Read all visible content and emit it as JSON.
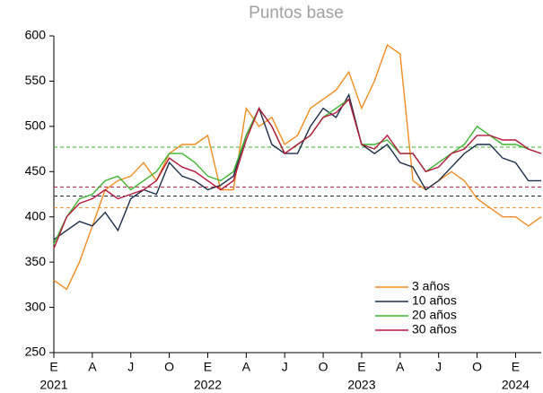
{
  "chart_data": {
    "type": "line",
    "title": "Puntos base",
    "x": [
      "2021-01",
      "2021-02",
      "2021-03",
      "2021-04",
      "2021-05",
      "2021-06",
      "2021-07",
      "2021-08",
      "2021-09",
      "2021-10",
      "2021-11",
      "2021-12",
      "2022-01",
      "2022-02",
      "2022-03",
      "2022-04",
      "2022-05",
      "2022-06",
      "2022-07",
      "2022-08",
      "2022-09",
      "2022-10",
      "2022-11",
      "2022-12",
      "2023-01",
      "2023-02",
      "2023-03",
      "2023-04",
      "2023-05",
      "2023-06",
      "2023-07",
      "2023-08",
      "2023-09",
      "2023-10",
      "2023-11",
      "2023-12",
      "2024-01",
      "2024-02",
      "2024-03"
    ],
    "series": [
      {
        "name": "3 años",
        "color": "#f28c1e",
        "average": 410,
        "values": [
          330,
          320,
          350,
          390,
          430,
          440,
          445,
          460,
          440,
          470,
          480,
          480,
          490,
          430,
          430,
          520,
          500,
          510,
          480,
          490,
          520,
          530,
          540,
          560,
          520,
          550,
          590,
          580,
          440,
          430,
          440,
          450,
          440,
          420,
          410,
          400,
          400,
          390,
          400
        ]
      },
      {
        "name": "10 años",
        "color": "#1c2e4a",
        "average": 423,
        "values": [
          375,
          385,
          395,
          390,
          405,
          385,
          420,
          430,
          425,
          460,
          445,
          440,
          430,
          435,
          445,
          490,
          520,
          480,
          470,
          470,
          500,
          520,
          510,
          535,
          480,
          470,
          480,
          460,
          455,
          430,
          440,
          455,
          470,
          480,
          480,
          465,
          460,
          440,
          440
        ]
      },
      {
        "name": "20 años",
        "color": "#3cb52e",
        "average": 477,
        "values": [
          370,
          400,
          420,
          425,
          440,
          445,
          430,
          440,
          450,
          470,
          470,
          460,
          445,
          440,
          450,
          490,
          520,
          500,
          470,
          480,
          490,
          510,
          520,
          530,
          480,
          480,
          485,
          470,
          470,
          450,
          460,
          470,
          480,
          500,
          490,
          480,
          480,
          475,
          470
        ]
      },
      {
        "name": "30 años",
        "color": "#b5173c",
        "average": 433,
        "values": [
          365,
          400,
          415,
          420,
          430,
          420,
          425,
          430,
          440,
          465,
          455,
          450,
          440,
          430,
          440,
          485,
          520,
          500,
          470,
          480,
          490,
          510,
          515,
          530,
          480,
          475,
          490,
          470,
          470,
          450,
          455,
          470,
          475,
          490,
          490,
          485,
          485,
          475,
          470
        ]
      }
    ],
    "ylim": [
      250,
      600
    ],
    "yticks": [
      250,
      300,
      350,
      400,
      450,
      500,
      550,
      600
    ],
    "xlim": [
      "2021-01",
      "2024-03"
    ],
    "xticks": [
      {
        "value": "2021-01",
        "label": "E"
      },
      {
        "value": "2021-04",
        "label": "A"
      },
      {
        "value": "2021-07",
        "label": "J"
      },
      {
        "value": "2021-10",
        "label": "O"
      },
      {
        "value": "2022-01",
        "label": "E"
      },
      {
        "value": "2022-04",
        "label": "A"
      },
      {
        "value": "2022-07",
        "label": "J"
      },
      {
        "value": "2022-10",
        "label": "O"
      },
      {
        "value": "2023-01",
        "label": "E"
      },
      {
        "value": "2023-04",
        "label": "A"
      },
      {
        "value": "2023-07",
        "label": "J"
      },
      {
        "value": "2023-10",
        "label": "O"
      },
      {
        "value": "2024-01",
        "label": "E"
      }
    ],
    "xtick_years": [
      {
        "value": "2021-01",
        "label": "2021"
      },
      {
        "value": "2022-01",
        "label": "2022"
      },
      {
        "value": "2023-01",
        "label": "2023"
      },
      {
        "value": "2024-01",
        "label": "2024"
      }
    ],
    "grid": false
  }
}
